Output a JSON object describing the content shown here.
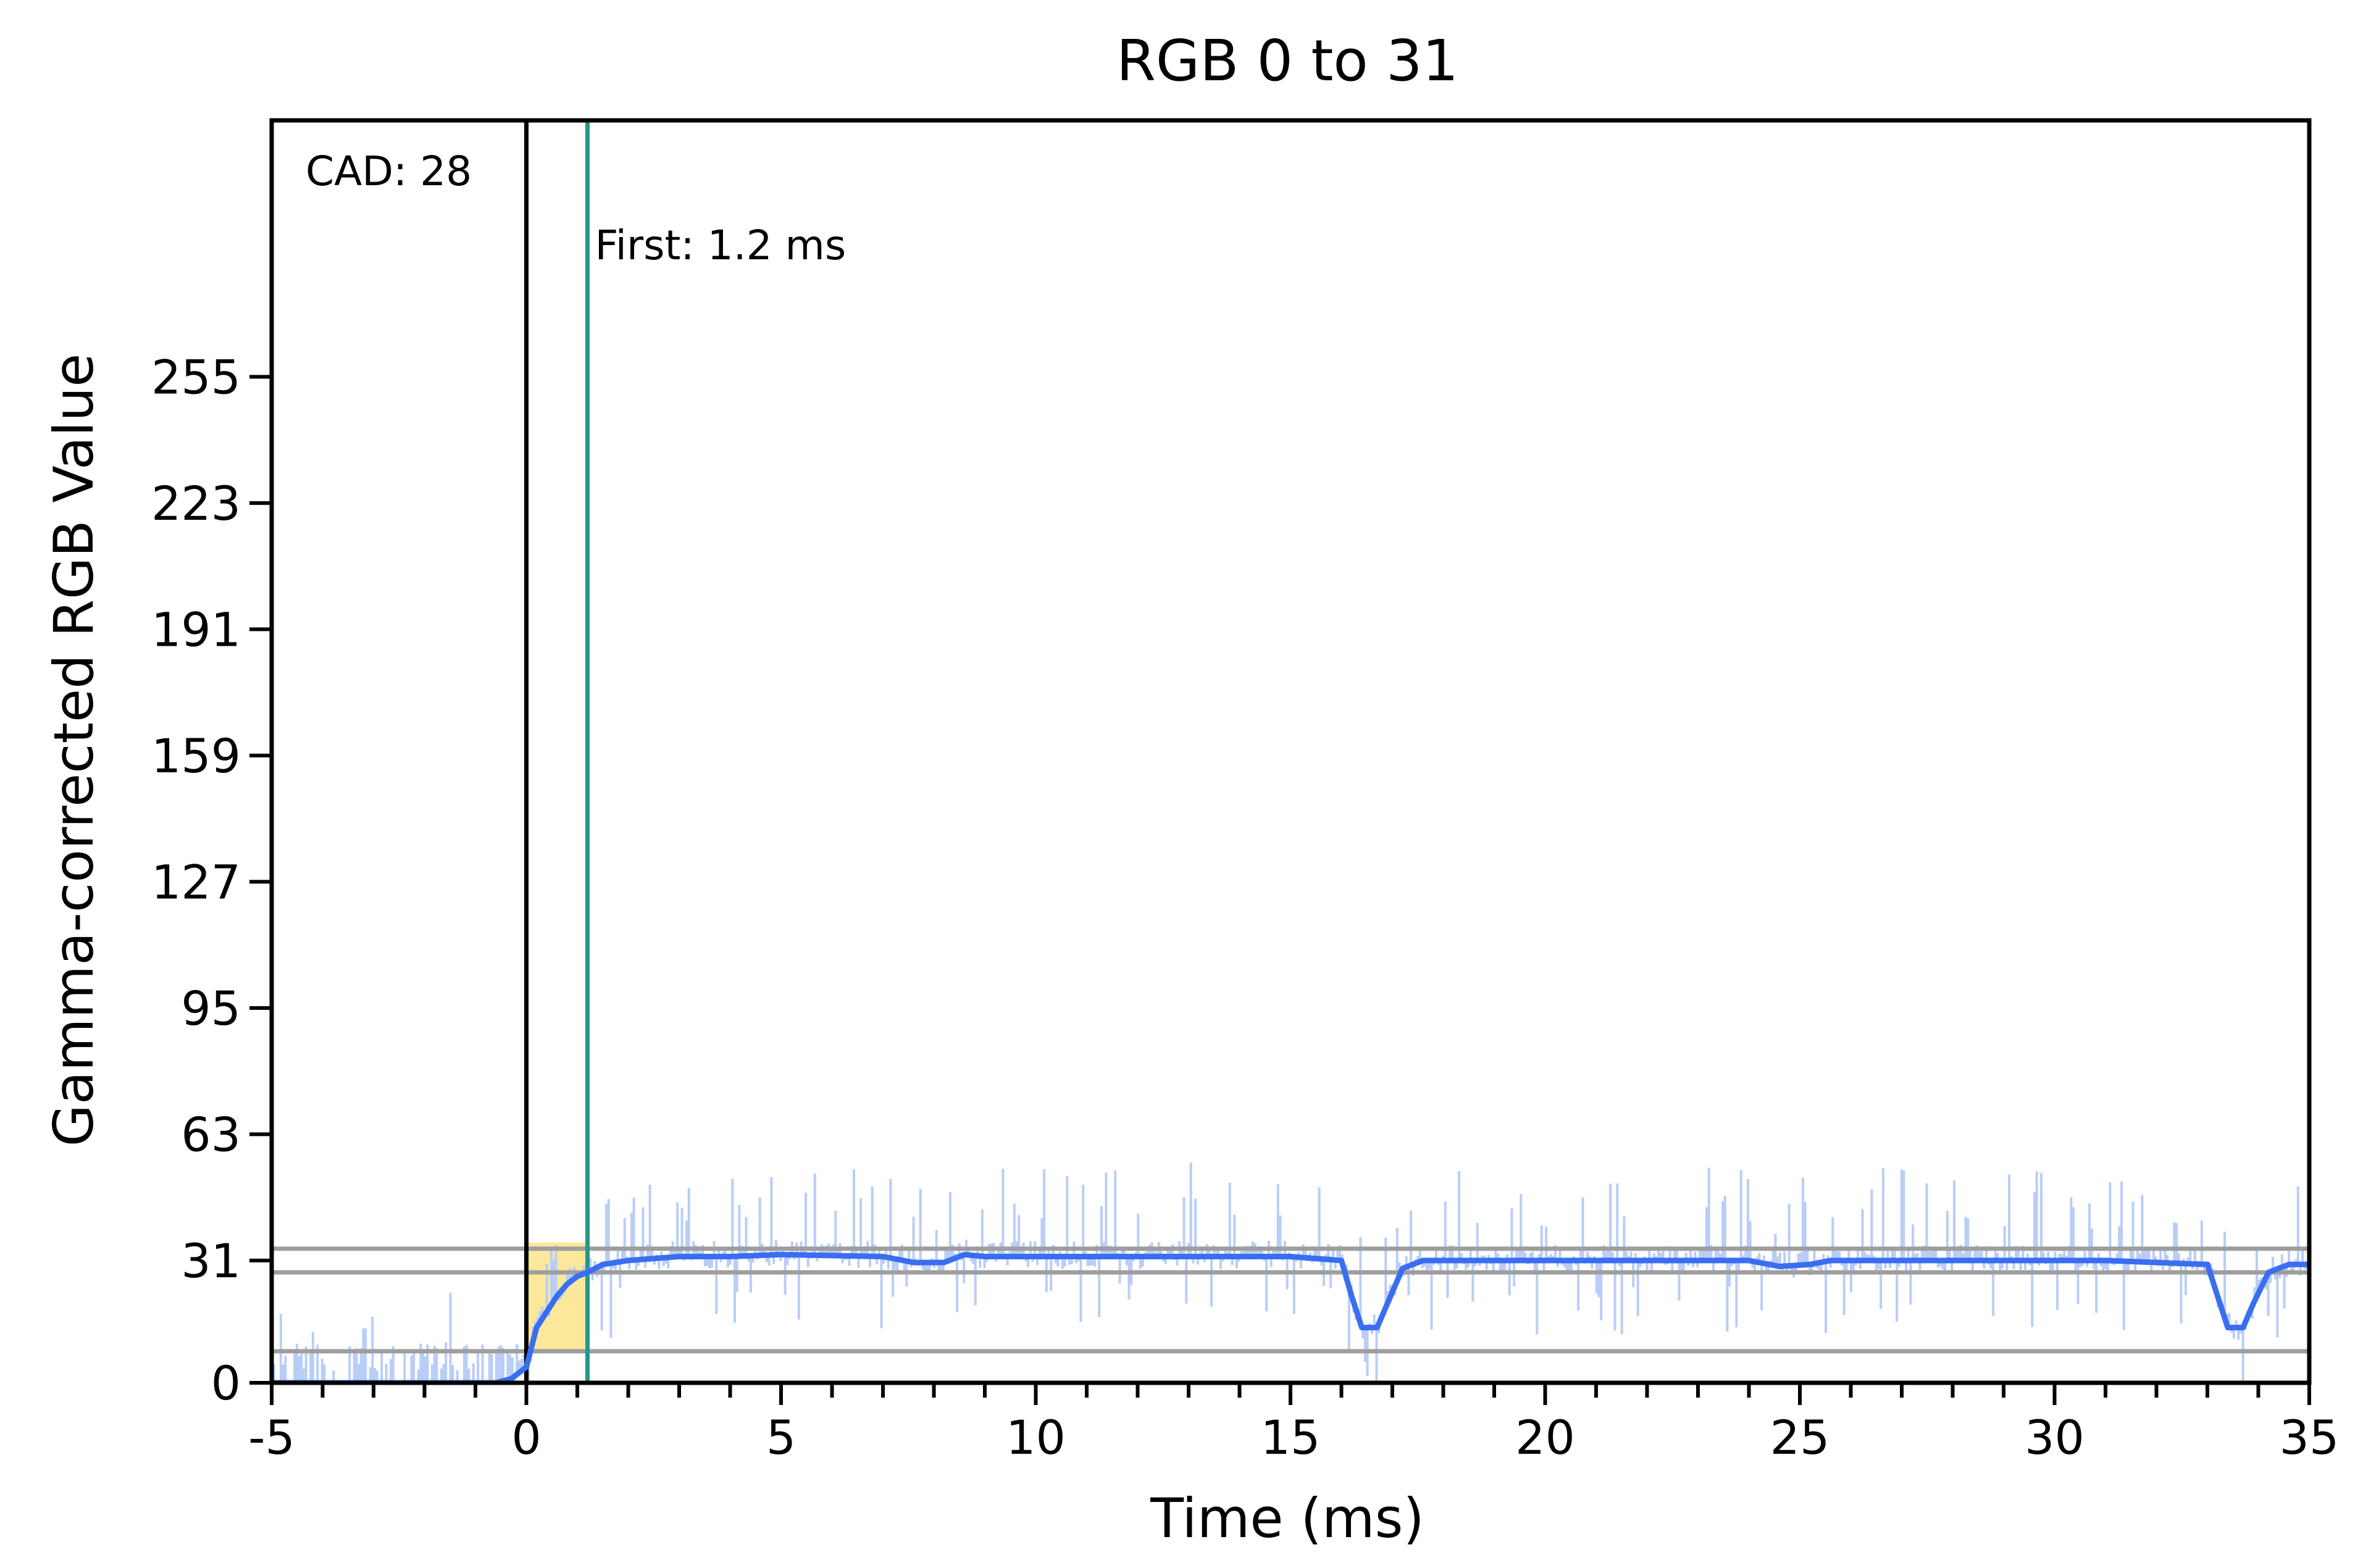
{
  "chart_data": {
    "type": "line",
    "title": "RGB 0 to 31",
    "xlabel": "Time (ms)",
    "ylabel": "Gamma-corrected RGB Value",
    "xlim": [
      -5,
      35
    ],
    "ylim": [
      0,
      320
    ],
    "x_ticks": [
      -5,
      0,
      5,
      10,
      15,
      20,
      25,
      30,
      35
    ],
    "x_tick_labels": [
      "-5",
      "0",
      "5",
      "10",
      "15",
      "20",
      "25",
      "30",
      "35"
    ],
    "x_minor_step": 1,
    "y_ticks": [
      0,
      31,
      63,
      95,
      127,
      159,
      191,
      223,
      255
    ],
    "y_tick_labels": [
      "0",
      "31",
      "63",
      "95",
      "127",
      "159",
      "191",
      "223",
      "255"
    ],
    "reference_lines": [
      {
        "y": 34,
        "color": "#9e9e9e"
      },
      {
        "y": 28,
        "color": "#9e9e9e"
      },
      {
        "y": 8,
        "color": "#9e9e9e"
      }
    ],
    "markers": [
      {
        "x": 0,
        "color": "#000000",
        "label": ""
      },
      {
        "x": 1.2,
        "color": "#26968c",
        "label": "First: 1.2 ms"
      }
    ],
    "annotations": [
      {
        "text": "CAD: 28",
        "position": "top-left"
      }
    ],
    "shaded_region": {
      "x": [
        0,
        1.2
      ],
      "color": "#fbe89a"
    },
    "series": [
      {
        "color": "#3a6ef0",
        "x": [
          -5,
          -0.6,
          -0.3,
          0,
          0.2,
          0.4,
          0.6,
          0.8,
          1.0,
          1.2,
          1.5,
          2.0,
          3.0,
          4.0,
          5.0,
          7.0,
          7.6,
          8.2,
          8.6,
          9.0,
          12.0,
          15.0,
          16.0,
          16.2,
          16.4,
          16.7,
          16.9,
          17.2,
          17.6,
          20.0,
          24.0,
          24.6,
          25.2,
          25.6,
          28.0,
          31.0,
          33.0,
          33.2,
          33.4,
          33.7,
          33.9,
          34.2,
          34.6,
          35.0
        ],
        "y": [
          0,
          0,
          1,
          4,
          14,
          18,
          22,
          25,
          27,
          28,
          30,
          31,
          32,
          32,
          32.5,
          32,
          30.5,
          30.5,
          32.5,
          32,
          32,
          32,
          31,
          22,
          14,
          14,
          20,
          29,
          31,
          31,
          31,
          29.5,
          30,
          31,
          31,
          31,
          30,
          22,
          14,
          14,
          20,
          28,
          30,
          30
        ]
      }
    ],
    "raw_series": {
      "color": "#b9cdf7",
      "description_free": true
    }
  }
}
